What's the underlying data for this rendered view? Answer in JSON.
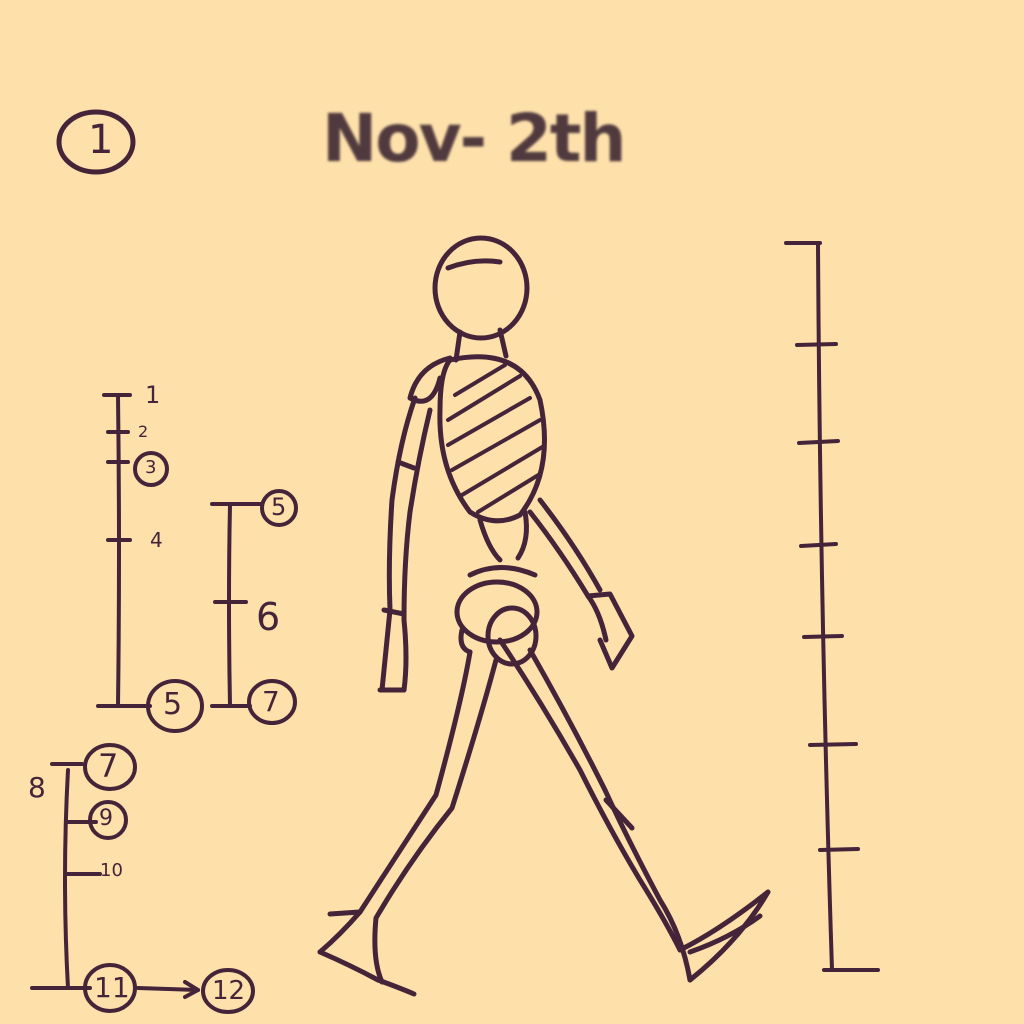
{
  "title": "Nov- 2th",
  "page_marker": "1",
  "colors": {
    "background": "#fde0aa",
    "ink": "#45243a"
  },
  "scale_a": {
    "labels": [
      "1",
      "2",
      "3",
      "4",
      "5"
    ]
  },
  "scale_b": {
    "labels": [
      "5",
      "6",
      "7"
    ]
  },
  "scale_c": {
    "labels": [
      "7",
      "8",
      "9",
      "10",
      "11",
      "12"
    ]
  }
}
